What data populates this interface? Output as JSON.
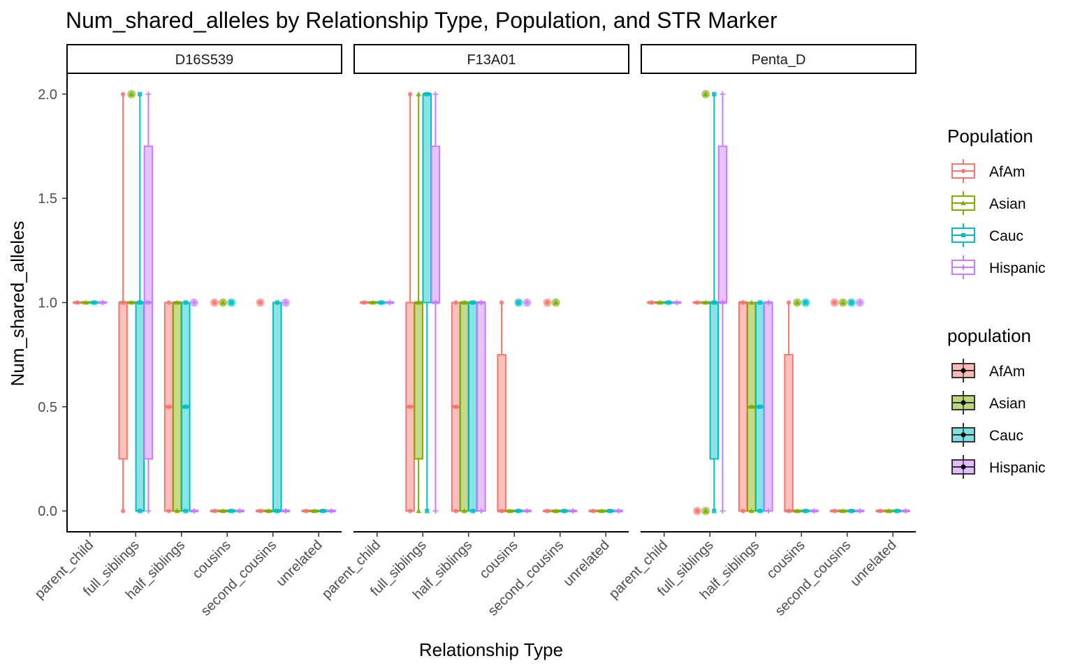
{
  "chart_data": {
    "type": "boxplot",
    "title": "Num_shared_alleles by Relationship Type, Population, and STR Marker",
    "xlabel": "Relationship Type",
    "ylabel": "Num_shared_alleles",
    "ylim": [
      -0.1,
      2.1
    ],
    "yticks": [
      0.0,
      0.5,
      1.0,
      1.5,
      2.0
    ],
    "ytick_labels": [
      "0.0",
      "0.5",
      "1.0",
      "1.5",
      "2.0"
    ],
    "categories": [
      "parent_child",
      "full_siblings",
      "half_siblings",
      "cousins",
      "second_cousins",
      "unrelated"
    ],
    "groups": [
      "AfAm",
      "Asian",
      "Cauc",
      "Hispanic"
    ],
    "colors": {
      "AfAm": "#F8766D",
      "Asian": "#7CAE00",
      "Cauc": "#00BFC4",
      "Hispanic": "#C77CFF"
    },
    "shapes": {
      "AfAm": "circle",
      "Asian": "triangle",
      "Cauc": "square",
      "Hispanic": "plus"
    },
    "legends": [
      {
        "title": "Population",
        "style": "colored",
        "items": [
          "AfAm",
          "Asian",
          "Cauc",
          "Hispanic"
        ]
      },
      {
        "title": "population",
        "style": "filled",
        "items": [
          "AfAm",
          "Asian",
          "Cauc",
          "Hispanic"
        ]
      }
    ],
    "panels": [
      {
        "name": "D16S539",
        "boxes": {
          "parent_child": [
            [
              1,
              1,
              1,
              1,
              1
            ],
            [
              1,
              1,
              1,
              1,
              1
            ],
            [
              1,
              1,
              1,
              1,
              1
            ],
            [
              1,
              1,
              1,
              1,
              1
            ]
          ],
          "full_siblings": [
            [
              0,
              0.25,
              1,
              1,
              2
            ],
            [
              1,
              1,
              1,
              1,
              1
            ],
            [
              0,
              0,
              1,
              1,
              2
            ],
            [
              0,
              0.25,
              1,
              1.75,
              2
            ]
          ],
          "half_siblings": [
            [
              0,
              0,
              0.5,
              1,
              1
            ],
            [
              0,
              0,
              1,
              1,
              1
            ],
            [
              0,
              0,
              0.5,
              1,
              1
            ],
            [
              0,
              0,
              0,
              0,
              0
            ]
          ],
          "cousins": [
            [
              0,
              0,
              0,
              0,
              0
            ],
            [
              0,
              0,
              0,
              0,
              0
            ],
            [
              0,
              0,
              0,
              0,
              0
            ],
            [
              0,
              0,
              0,
              0,
              0
            ]
          ],
          "second_cousins": [
            [
              0,
              0,
              0,
              0,
              0
            ],
            [
              0,
              0,
              0,
              0,
              0
            ],
            [
              0,
              0,
              0,
              1,
              1
            ],
            [
              0,
              0,
              0,
              0,
              0
            ]
          ],
          "unrelated": [
            [
              0,
              0,
              0,
              0,
              0
            ],
            [
              0,
              0,
              0,
              0,
              0
            ],
            [
              0,
              0,
              0,
              0,
              0
            ],
            [
              0,
              0,
              0,
              0,
              0
            ]
          ]
        },
        "outliers": [
          {
            "category": "full_siblings",
            "group": "Asian",
            "values": [
              2
            ]
          },
          {
            "category": "half_siblings",
            "group": "Hispanic",
            "values": [
              1
            ]
          },
          {
            "category": "cousins",
            "group": "AfAm",
            "values": [
              1
            ]
          },
          {
            "category": "cousins",
            "group": "Asian",
            "values": [
              1
            ]
          },
          {
            "category": "cousins",
            "group": "Cauc",
            "values": [
              1
            ]
          },
          {
            "category": "second_cousins",
            "group": "AfAm",
            "values": [
              1
            ]
          },
          {
            "category": "second_cousins",
            "group": "Hispanic",
            "values": [
              1
            ]
          }
        ]
      },
      {
        "name": "F13A01",
        "boxes": {
          "parent_child": [
            [
              1,
              1,
              1,
              1,
              1
            ],
            [
              1,
              1,
              1,
              1,
              1
            ],
            [
              1,
              1,
              1,
              1,
              1
            ],
            [
              1,
              1,
              1,
              1,
              1
            ]
          ],
          "full_siblings": [
            [
              0,
              0,
              0.5,
              1,
              2
            ],
            [
              0,
              0.25,
              1,
              1,
              2
            ],
            [
              0,
              1,
              2,
              2,
              2
            ],
            [
              0,
              1,
              1,
              1.75,
              2
            ]
          ],
          "half_siblings": [
            [
              0,
              0,
              0.5,
              1,
              1
            ],
            [
              0,
              0,
              1,
              1,
              1
            ],
            [
              0,
              0,
              1,
              1,
              1
            ],
            [
              0,
              0,
              1,
              1,
              1
            ]
          ],
          "cousins": [
            [
              0,
              0,
              0,
              0.75,
              1
            ],
            [
              0,
              0,
              0,
              0,
              0
            ],
            [
              0,
              0,
              0,
              0,
              0
            ],
            [
              0,
              0,
              0,
              0,
              0
            ]
          ],
          "second_cousins": [
            [
              0,
              0,
              0,
              0,
              0
            ],
            [
              0,
              0,
              0,
              0,
              0
            ],
            [
              0,
              0,
              0,
              0,
              0
            ],
            [
              0,
              0,
              0,
              0,
              0
            ]
          ],
          "unrelated": [
            [
              0,
              0,
              0,
              0,
              0
            ],
            [
              0,
              0,
              0,
              0,
              0
            ],
            [
              0,
              0,
              0,
              0,
              0
            ],
            [
              0,
              0,
              0,
              0,
              0
            ]
          ]
        },
        "outliers": [
          {
            "category": "cousins",
            "group": "Cauc",
            "values": [
              1
            ]
          },
          {
            "category": "cousins",
            "group": "Hispanic",
            "values": [
              1
            ]
          },
          {
            "category": "second_cousins",
            "group": "AfAm",
            "values": [
              1
            ]
          },
          {
            "category": "second_cousins",
            "group": "Asian",
            "values": [
              1
            ]
          }
        ]
      },
      {
        "name": "Penta_D",
        "boxes": {
          "parent_child": [
            [
              1,
              1,
              1,
              1,
              1
            ],
            [
              1,
              1,
              1,
              1,
              1
            ],
            [
              1,
              1,
              1,
              1,
              1
            ],
            [
              1,
              1,
              1,
              1,
              1
            ]
          ],
          "full_siblings": [
            [
              1,
              1,
              1,
              1,
              1
            ],
            [
              1,
              1,
              1,
              1,
              1
            ],
            [
              0,
              0.25,
              1,
              1,
              2
            ],
            [
              0,
              1,
              1,
              1.75,
              2
            ]
          ],
          "half_siblings": [
            [
              0,
              0,
              1,
              1,
              1
            ],
            [
              0,
              0,
              0.5,
              1,
              1
            ],
            [
              0,
              0,
              0.5,
              1,
              1
            ],
            [
              0,
              0,
              1,
              1,
              1
            ]
          ],
          "cousins": [
            [
              0,
              0,
              0,
              0.75,
              1
            ],
            [
              0,
              0,
              0,
              0,
              0
            ],
            [
              0,
              0,
              0,
              0,
              0
            ],
            [
              0,
              0,
              0,
              0,
              0
            ]
          ],
          "second_cousins": [
            [
              0,
              0,
              0,
              0,
              0
            ],
            [
              0,
              0,
              0,
              0,
              0
            ],
            [
              0,
              0,
              0,
              0,
              0
            ],
            [
              0,
              0,
              0,
              0,
              0
            ]
          ],
          "unrelated": [
            [
              0,
              0,
              0,
              0,
              0
            ],
            [
              0,
              0,
              0,
              0,
              0
            ],
            [
              0,
              0,
              0,
              0,
              0
            ],
            [
              0,
              0,
              0,
              0,
              0
            ]
          ]
        },
        "outliers": [
          {
            "category": "full_siblings",
            "group": "AfAm",
            "values": [
              0
            ]
          },
          {
            "category": "full_siblings",
            "group": "Asian",
            "values": [
              0,
              2
            ]
          },
          {
            "category": "cousins",
            "group": "Asian",
            "values": [
              1
            ]
          },
          {
            "category": "cousins",
            "group": "Cauc",
            "values": [
              1
            ]
          },
          {
            "category": "second_cousins",
            "group": "AfAm",
            "values": [
              1
            ]
          },
          {
            "category": "second_cousins",
            "group": "Asian",
            "values": [
              1
            ]
          },
          {
            "category": "second_cousins",
            "group": "Cauc",
            "values": [
              1
            ]
          },
          {
            "category": "second_cousins",
            "group": "Hispanic",
            "values": [
              1
            ]
          }
        ]
      }
    ]
  }
}
